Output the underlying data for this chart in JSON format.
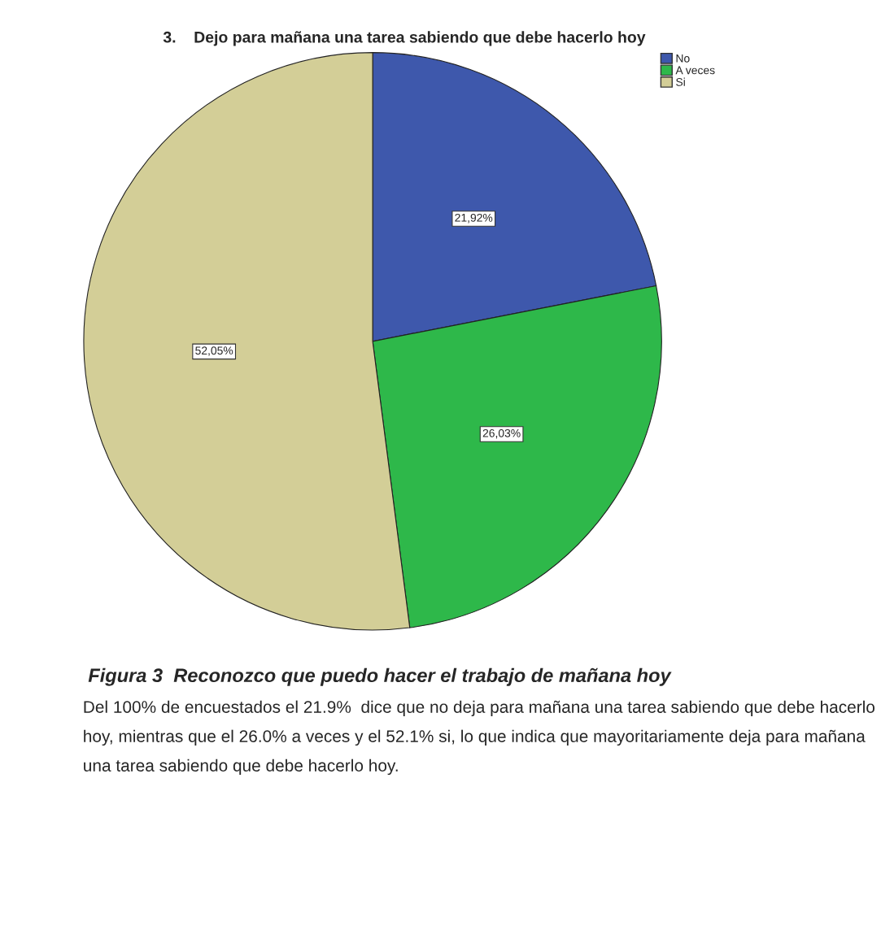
{
  "chart_data": {
    "type": "pie",
    "title": "3.    Dejo para mañana una tarea sabiendo que debe hacerlo hoy",
    "categories": [
      "No",
      "A veces",
      "Si"
    ],
    "values": [
      21.92,
      26.03,
      52.05
    ],
    "colors": [
      "#3e58ac",
      "#2eb84a",
      "#d3ce97"
    ],
    "value_labels": [
      "21,92%",
      "26,03%",
      "52,05%"
    ],
    "legend": "top right",
    "annotations": [
      "Figura 3  Reconozco que puedo hacer el trabajo de mañana hoy",
      "Del 100% de encuestados el 21.9%  dice que no deja para mañana una tarea sabiendo que debe hacerlo hoy, mientras que el 26.0% a veces y el 52.1% si, lo que indica que mayoritariamente deja para mañana una tarea sabiendo que debe hacerlo hoy."
    ]
  }
}
